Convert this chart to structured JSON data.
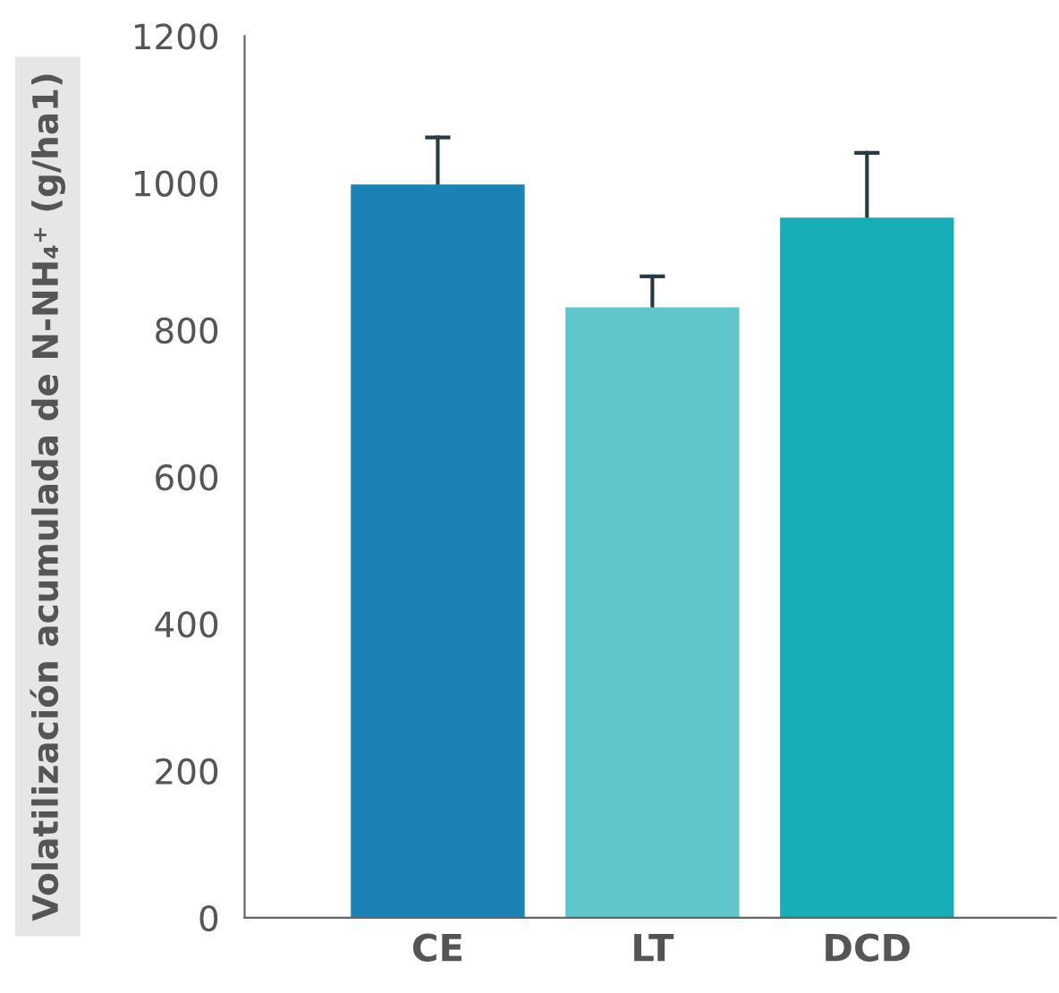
{
  "chart_data": {
    "type": "bar",
    "ylabel": "Volatilización acumulada de N-NH₄⁺ (g/ha1)",
    "categories": [
      "CE",
      "LT",
      "DCD"
    ],
    "values": [
      998,
      831,
      953
    ],
    "colors": [
      "#1a82b5",
      "#5fc7cb",
      "#17aeb7"
    ],
    "errors": [
      [
        998,
        1062
      ],
      [
        831,
        873
      ],
      [
        953,
        1041
      ]
    ],
    "ylim": [
      0,
      1200
    ],
    "yticks": [
      0,
      200,
      400,
      600,
      800,
      1000,
      1200
    ],
    "grid": false,
    "legend": false
  }
}
